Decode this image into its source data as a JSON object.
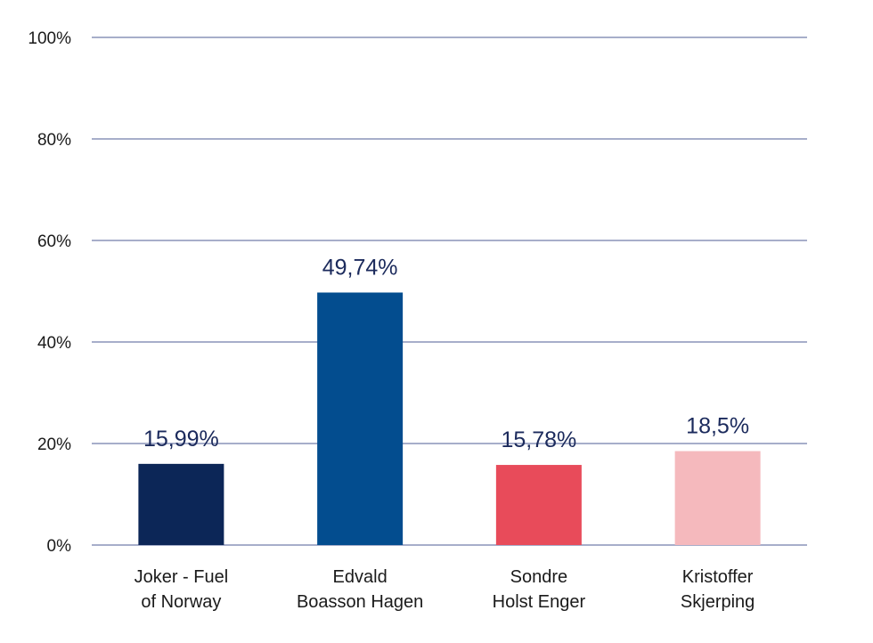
{
  "chart_data": {
    "type": "bar",
    "categories": [
      [
        "Joker - Fuel",
        "of Norway"
      ],
      [
        "Edvald",
        "Boasson Hagen"
      ],
      [
        "Sondre",
        "Holst Enger"
      ],
      [
        "Kristoffer",
        "Skjerping"
      ]
    ],
    "values": [
      15.99,
      49.74,
      15.78,
      18.5
    ],
    "data_labels": [
      "15,99%",
      "49,74%",
      "15,78%",
      "18,5%"
    ],
    "colors": [
      "#0c2657",
      "#034d8f",
      "#e84b5a",
      "#f5b9bd"
    ],
    "ylim": [
      0,
      100
    ],
    "yticks": [
      0,
      20,
      40,
      60,
      80,
      100
    ],
    "ytick_labels": [
      "0%",
      "20%",
      "40%",
      "60%",
      "80%",
      "100%"
    ],
    "grid": true,
    "title": "",
    "xlabel": "",
    "ylabel": ""
  }
}
